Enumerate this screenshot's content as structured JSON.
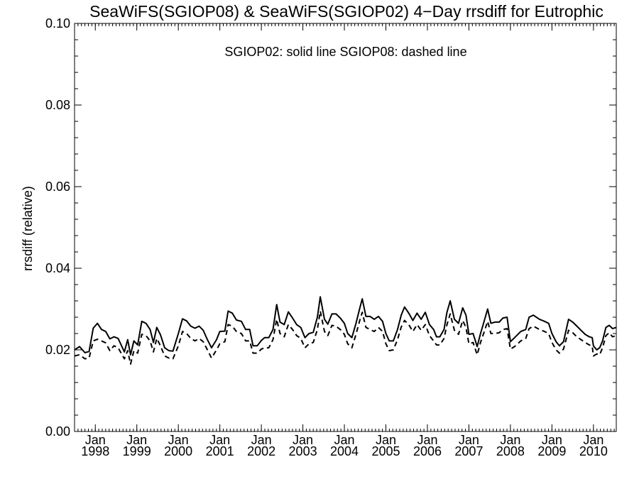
{
  "chart_data": {
    "type": "line",
    "title": "SeaWiFS(SGIOP08) & SeaWiFS(SGIOP02) 4−Day rrsdiff for Eutrophic",
    "annotation": "SGIOP02: solid line   SGIOP08: dashed line",
    "xlabel": "",
    "ylabel": "rrsdiff (relative)",
    "ylim": [
      0.0,
      0.1
    ],
    "xlim": [
      1997.5,
      2010.55
    ],
    "yticks": [
      {
        "value": 0.0,
        "label": "0.00"
      },
      {
        "value": 0.02,
        "label": "0.02"
      },
      {
        "value": 0.04,
        "label": "0.04"
      },
      {
        "value": 0.06,
        "label": "0.06"
      },
      {
        "value": 0.08,
        "label": "0.08"
      },
      {
        "value": 0.1,
        "label": "0.10"
      }
    ],
    "xticks": [
      {
        "value": 1998.0,
        "month": "Jan",
        "year": "1998"
      },
      {
        "value": 1999.0,
        "month": "Jan",
        "year": "1999"
      },
      {
        "value": 2000.0,
        "month": "Jan",
        "year": "2000"
      },
      {
        "value": 2001.0,
        "month": "Jan",
        "year": "2001"
      },
      {
        "value": 2002.0,
        "month": "Jan",
        "year": "2002"
      },
      {
        "value": 2003.0,
        "month": "Jan",
        "year": "2003"
      },
      {
        "value": 2004.0,
        "month": "Jan",
        "year": "2004"
      },
      {
        "value": 2005.0,
        "month": "Jan",
        "year": "2005"
      },
      {
        "value": 2006.0,
        "month": "Jan",
        "year": "2006"
      },
      {
        "value": 2007.0,
        "month": "Jan",
        "year": "2007"
      },
      {
        "value": 2008.0,
        "month": "Jan",
        "year": "2008"
      },
      {
        "value": 2009.0,
        "month": "Jan",
        "year": "2009"
      },
      {
        "value": 2010.0,
        "month": "Jan",
        "year": "2010"
      }
    ],
    "grid": false,
    "series": [
      {
        "name": "SGIOP02",
        "style": "solid",
        "color": "#000000",
        "points": [
          [
            1997.5,
            0.02
          ],
          [
            1997.62,
            0.0208
          ],
          [
            1997.75,
            0.0193
          ],
          [
            1997.85,
            0.0196
          ],
          [
            1997.95,
            0.0253
          ],
          [
            1998.05,
            0.0265
          ],
          [
            1998.15,
            0.025
          ],
          [
            1998.25,
            0.0245
          ],
          [
            1998.35,
            0.0227
          ],
          [
            1998.45,
            0.0232
          ],
          [
            1998.55,
            0.0228
          ],
          [
            1998.7,
            0.0195
          ],
          [
            1998.78,
            0.0225
          ],
          [
            1998.85,
            0.0188
          ],
          [
            1998.93,
            0.0222
          ],
          [
            1999.02,
            0.0212
          ],
          [
            1999.12,
            0.027
          ],
          [
            1999.22,
            0.0265
          ],
          [
            1999.32,
            0.025
          ],
          [
            1999.4,
            0.0218
          ],
          [
            1999.48,
            0.0255
          ],
          [
            1999.57,
            0.0237
          ],
          [
            1999.67,
            0.0205
          ],
          [
            1999.77,
            0.0198
          ],
          [
            1999.87,
            0.0197
          ],
          [
            2000.0,
            0.024
          ],
          [
            2000.1,
            0.0276
          ],
          [
            2000.2,
            0.0271
          ],
          [
            2000.3,
            0.0258
          ],
          [
            2000.4,
            0.0253
          ],
          [
            2000.5,
            0.0258
          ],
          [
            2000.6,
            0.0248
          ],
          [
            2000.7,
            0.0225
          ],
          [
            2000.8,
            0.0205
          ],
          [
            2000.92,
            0.0225
          ],
          [
            2001.0,
            0.0245
          ],
          [
            2001.12,
            0.0246
          ],
          [
            2001.2,
            0.0295
          ],
          [
            2001.3,
            0.029
          ],
          [
            2001.4,
            0.0273
          ],
          [
            2001.52,
            0.027
          ],
          [
            2001.62,
            0.025
          ],
          [
            2001.72,
            0.025
          ],
          [
            2001.8,
            0.021
          ],
          [
            2001.9,
            0.021
          ],
          [
            2002.0,
            0.0223
          ],
          [
            2002.08,
            0.023
          ],
          [
            2002.18,
            0.023
          ],
          [
            2002.28,
            0.025
          ],
          [
            2002.37,
            0.0311
          ],
          [
            2002.45,
            0.0268
          ],
          [
            2002.55,
            0.0262
          ],
          [
            2002.65,
            0.0293
          ],
          [
            2002.75,
            0.0278
          ],
          [
            2002.85,
            0.0262
          ],
          [
            2002.95,
            0.0255
          ],
          [
            2003.05,
            0.023
          ],
          [
            2003.15,
            0.024
          ],
          [
            2003.25,
            0.0243
          ],
          [
            2003.35,
            0.028
          ],
          [
            2003.42,
            0.033
          ],
          [
            2003.52,
            0.0275
          ],
          [
            2003.6,
            0.0263
          ],
          [
            2003.7,
            0.0288
          ],
          [
            2003.8,
            0.0288
          ],
          [
            2003.9,
            0.0278
          ],
          [
            2004.0,
            0.0265
          ],
          [
            2004.08,
            0.024
          ],
          [
            2004.18,
            0.023
          ],
          [
            2004.28,
            0.0265
          ],
          [
            2004.37,
            0.0302
          ],
          [
            2004.43,
            0.0325
          ],
          [
            2004.52,
            0.0282
          ],
          [
            2004.62,
            0.0282
          ],
          [
            2004.72,
            0.0275
          ],
          [
            2004.82,
            0.0282
          ],
          [
            2004.92,
            0.027
          ],
          [
            2005.0,
            0.024
          ],
          [
            2005.08,
            0.0222
          ],
          [
            2005.18,
            0.0222
          ],
          [
            2005.28,
            0.025
          ],
          [
            2005.37,
            0.0285
          ],
          [
            2005.45,
            0.0305
          ],
          [
            2005.55,
            0.029
          ],
          [
            2005.65,
            0.0272
          ],
          [
            2005.75,
            0.029
          ],
          [
            2005.85,
            0.0275
          ],
          [
            2005.95,
            0.0292
          ],
          [
            2006.05,
            0.0262
          ],
          [
            2006.15,
            0.025
          ],
          [
            2006.22,
            0.0232
          ],
          [
            2006.3,
            0.0232
          ],
          [
            2006.4,
            0.025
          ],
          [
            2006.47,
            0.0292
          ],
          [
            2006.55,
            0.032
          ],
          [
            2006.65,
            0.0275
          ],
          [
            2006.75,
            0.0265
          ],
          [
            2006.85,
            0.0303
          ],
          [
            2006.93,
            0.0285
          ],
          [
            2007.0,
            0.0238
          ],
          [
            2007.1,
            0.024
          ],
          [
            2007.2,
            0.0208
          ],
          [
            2007.28,
            0.024
          ],
          [
            2007.38,
            0.0275
          ],
          [
            2007.45,
            0.03
          ],
          [
            2007.53,
            0.0265
          ],
          [
            2007.63,
            0.0268
          ],
          [
            2007.73,
            0.0268
          ],
          [
            2007.82,
            0.0278
          ],
          [
            2007.92,
            0.028
          ],
          [
            2008.0,
            0.022
          ],
          [
            2008.1,
            0.023
          ],
          [
            2008.25,
            0.0245
          ],
          [
            2008.37,
            0.025
          ],
          [
            2008.45,
            0.028
          ],
          [
            2008.55,
            0.0285
          ],
          [
            2008.7,
            0.0275
          ],
          [
            2008.82,
            0.027
          ],
          [
            2008.92,
            0.0265
          ],
          [
            2009.0,
            0.024
          ],
          [
            2009.1,
            0.022
          ],
          [
            2009.18,
            0.021
          ],
          [
            2009.28,
            0.022
          ],
          [
            2009.4,
            0.0275
          ],
          [
            2009.5,
            0.0268
          ],
          [
            2009.6,
            0.0258
          ],
          [
            2009.7,
            0.0248
          ],
          [
            2009.8,
            0.0238
          ],
          [
            2009.9,
            0.0232
          ],
          [
            2009.97,
            0.023
          ],
          [
            2010.0,
            0.021
          ],
          [
            2010.08,
            0.02
          ],
          [
            2010.15,
            0.0205
          ],
          [
            2010.22,
            0.0222
          ],
          [
            2010.3,
            0.0255
          ],
          [
            2010.38,
            0.026
          ],
          [
            2010.46,
            0.0252
          ],
          [
            2010.55,
            0.0255
          ]
        ]
      },
      {
        "name": "SGIOP08",
        "style": "dashed",
        "color": "#000000",
        "points": [
          [
            1997.5,
            0.0185
          ],
          [
            1997.62,
            0.0188
          ],
          [
            1997.75,
            0.0178
          ],
          [
            1997.85,
            0.018
          ],
          [
            1997.95,
            0.0222
          ],
          [
            1998.05,
            0.0226
          ],
          [
            1998.15,
            0.0222
          ],
          [
            1998.25,
            0.0217
          ],
          [
            1998.35,
            0.0198
          ],
          [
            1998.45,
            0.021
          ],
          [
            1998.55,
            0.0205
          ],
          [
            1998.7,
            0.0178
          ],
          [
            1998.78,
            0.0198
          ],
          [
            1998.85,
            0.0165
          ],
          [
            1998.93,
            0.0198
          ],
          [
            1999.02,
            0.0192
          ],
          [
            1999.12,
            0.0238
          ],
          [
            1999.22,
            0.0235
          ],
          [
            1999.32,
            0.0222
          ],
          [
            1999.4,
            0.0195
          ],
          [
            1999.48,
            0.0228
          ],
          [
            1999.57,
            0.021
          ],
          [
            1999.67,
            0.0185
          ],
          [
            1999.77,
            0.018
          ],
          [
            1999.87,
            0.0178
          ],
          [
            2000.0,
            0.021
          ],
          [
            2000.1,
            0.0245
          ],
          [
            2000.2,
            0.024
          ],
          [
            2000.3,
            0.0228
          ],
          [
            2000.4,
            0.0222
          ],
          [
            2000.5,
            0.0228
          ],
          [
            2000.6,
            0.022
          ],
          [
            2000.7,
            0.02
          ],
          [
            2000.8,
            0.018
          ],
          [
            2000.92,
            0.02
          ],
          [
            2001.0,
            0.0215
          ],
          [
            2001.12,
            0.022
          ],
          [
            2001.2,
            0.0262
          ],
          [
            2001.3,
            0.0258
          ],
          [
            2001.4,
            0.0245
          ],
          [
            2001.52,
            0.024
          ],
          [
            2001.62,
            0.0222
          ],
          [
            2001.72,
            0.0222
          ],
          [
            2001.8,
            0.0192
          ],
          [
            2001.9,
            0.0192
          ],
          [
            2002.0,
            0.0202
          ],
          [
            2002.08,
            0.0205
          ],
          [
            2002.18,
            0.0205
          ],
          [
            2002.28,
            0.0225
          ],
          [
            2002.37,
            0.0275
          ],
          [
            2002.45,
            0.024
          ],
          [
            2002.55,
            0.0232
          ],
          [
            2002.65,
            0.0262
          ],
          [
            2002.75,
            0.025
          ],
          [
            2002.85,
            0.0235
          ],
          [
            2002.95,
            0.0228
          ],
          [
            2003.05,
            0.0205
          ],
          [
            2003.15,
            0.0215
          ],
          [
            2003.25,
            0.0218
          ],
          [
            2003.35,
            0.025
          ],
          [
            2003.42,
            0.0295
          ],
          [
            2003.52,
            0.0245
          ],
          [
            2003.6,
            0.0235
          ],
          [
            2003.7,
            0.026
          ],
          [
            2003.8,
            0.0258
          ],
          [
            2003.9,
            0.025
          ],
          [
            2004.0,
            0.0238
          ],
          [
            2004.08,
            0.0215
          ],
          [
            2004.18,
            0.0205
          ],
          [
            2004.28,
            0.0238
          ],
          [
            2004.37,
            0.0272
          ],
          [
            2004.43,
            0.0292
          ],
          [
            2004.52,
            0.0255
          ],
          [
            2004.62,
            0.025
          ],
          [
            2004.72,
            0.0245
          ],
          [
            2004.82,
            0.0255
          ],
          [
            2004.92,
            0.0245
          ],
          [
            2005.0,
            0.0215
          ],
          [
            2005.08,
            0.0198
          ],
          [
            2005.18,
            0.02
          ],
          [
            2005.28,
            0.0225
          ],
          [
            2005.37,
            0.0256
          ],
          [
            2005.45,
            0.0272
          ],
          [
            2005.55,
            0.0262
          ],
          [
            2005.65,
            0.0245
          ],
          [
            2005.75,
            0.0262
          ],
          [
            2005.85,
            0.0248
          ],
          [
            2005.95,
            0.0262
          ],
          [
            2006.05,
            0.0235
          ],
          [
            2006.15,
            0.0222
          ],
          [
            2006.22,
            0.0212
          ],
          [
            2006.3,
            0.0212
          ],
          [
            2006.4,
            0.0228
          ],
          [
            2006.47,
            0.0262
          ],
          [
            2006.55,
            0.0288
          ],
          [
            2006.65,
            0.0248
          ],
          [
            2006.75,
            0.0238
          ],
          [
            2006.85,
            0.0272
          ],
          [
            2006.93,
            0.0255
          ],
          [
            2007.0,
            0.0215
          ],
          [
            2007.1,
            0.0218
          ],
          [
            2007.2,
            0.0188
          ],
          [
            2007.28,
            0.0218
          ],
          [
            2007.38,
            0.0248
          ],
          [
            2007.45,
            0.027
          ],
          [
            2007.53,
            0.024
          ],
          [
            2007.63,
            0.024
          ],
          [
            2007.73,
            0.0242
          ],
          [
            2007.82,
            0.025
          ],
          [
            2007.92,
            0.0252
          ],
          [
            2008.0,
            0.0202
          ],
          [
            2008.1,
            0.0208
          ],
          [
            2008.25,
            0.0222
          ],
          [
            2008.37,
            0.0228
          ],
          [
            2008.45,
            0.0252
          ],
          [
            2008.55,
            0.0258
          ],
          [
            2008.7,
            0.025
          ],
          [
            2008.82,
            0.0245
          ],
          [
            2008.92,
            0.024
          ],
          [
            2009.0,
            0.0218
          ],
          [
            2009.1,
            0.02
          ],
          [
            2009.18,
            0.0192
          ],
          [
            2009.28,
            0.0202
          ],
          [
            2009.4,
            0.0248
          ],
          [
            2009.5,
            0.0242
          ],
          [
            2009.6,
            0.0232
          ],
          [
            2009.7,
            0.0225
          ],
          [
            2009.8,
            0.0218
          ],
          [
            2009.9,
            0.0212
          ],
          [
            2009.97,
            0.021
          ],
          [
            2010.0,
            0.0185
          ],
          [
            2010.08,
            0.019
          ],
          [
            2010.15,
            0.0188
          ],
          [
            2010.22,
            0.0205
          ],
          [
            2010.3,
            0.0235
          ],
          [
            2010.38,
            0.0242
          ],
          [
            2010.46,
            0.0232
          ],
          [
            2010.55,
            0.0235
          ]
        ]
      }
    ]
  }
}
